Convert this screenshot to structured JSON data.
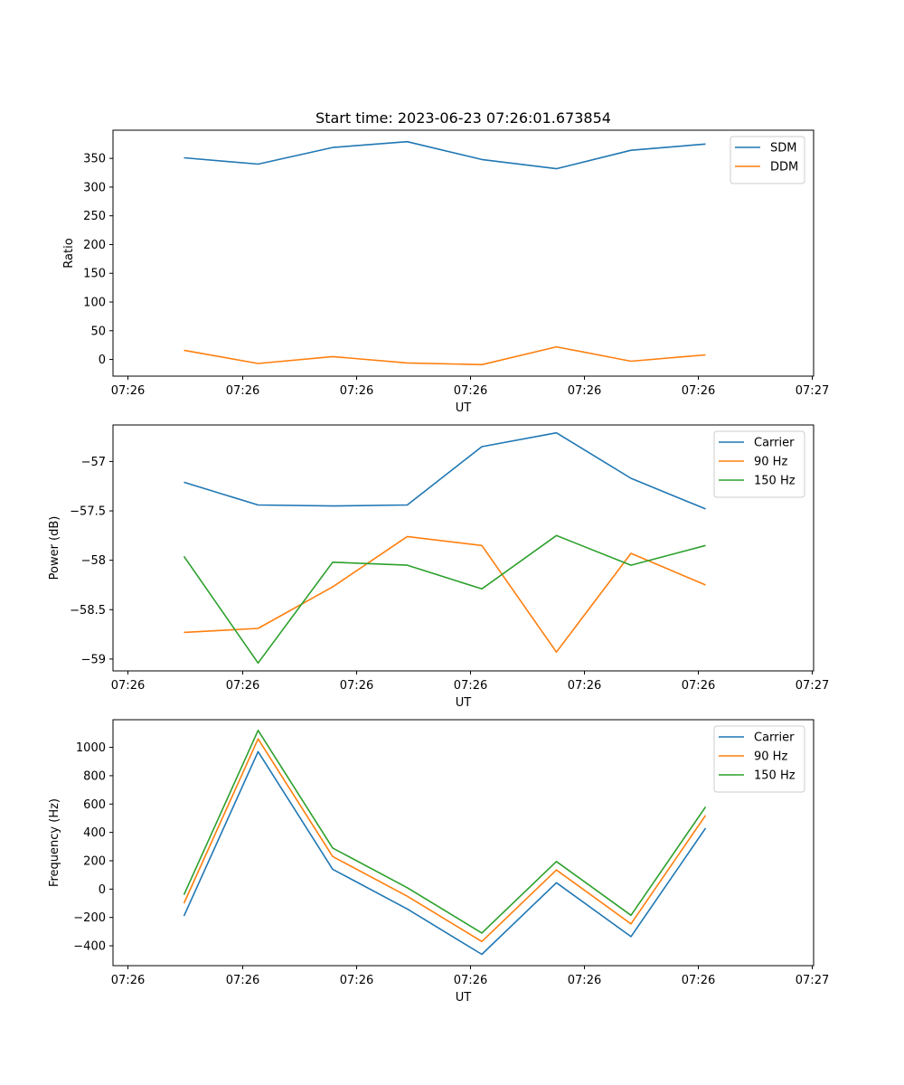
{
  "figure": {
    "title": "Start time: 2023-06-23 07:26:01.673854"
  },
  "chart_data": [
    {
      "type": "line",
      "title": "Start time: 2023-06-23 07:26:01.673854",
      "xlabel": "UT",
      "ylabel": "Ratio",
      "x_tick_labels": [
        "07:26",
        "07:26",
        "07:26",
        "07:26",
        "07:26",
        "07:26",
        "07:27"
      ],
      "y_ticks": [
        0,
        50,
        100,
        150,
        200,
        250,
        300,
        350
      ],
      "ylim": [
        -29,
        399
      ],
      "legend_position": "top-right",
      "grid": false,
      "series": [
        {
          "name": "SDM",
          "color": "#1f77b4",
          "values": [
            351,
            340,
            369,
            379,
            348,
            332,
            364,
            375
          ]
        },
        {
          "name": "DDM",
          "color": "#ff7f0e",
          "values": [
            16,
            -7,
            5,
            -6,
            -9,
            22,
            -3,
            8
          ]
        }
      ]
    },
    {
      "type": "line",
      "title": "",
      "xlabel": "UT",
      "ylabel": "Power (dB)",
      "x_tick_labels": [
        "07:26",
        "07:26",
        "07:26",
        "07:26",
        "07:26",
        "07:26",
        "07:27"
      ],
      "y_ticks": [
        -59.0,
        -58.5,
        -58.0,
        -57.5,
        -57.0
      ],
      "ylim": [
        -59.12,
        -56.63
      ],
      "legend_position": "top-right",
      "grid": false,
      "series": [
        {
          "name": "Carrier",
          "color": "#1f77b4",
          "values": [
            -57.21,
            -57.44,
            -57.45,
            -57.44,
            -56.85,
            -56.71,
            -57.17,
            -57.48
          ]
        },
        {
          "name": "90 Hz",
          "color": "#ff7f0e",
          "values": [
            -58.73,
            -58.69,
            -58.27,
            -57.76,
            -57.85,
            -58.93,
            -57.93,
            -58.25
          ]
        },
        {
          "name": "150 Hz",
          "color": "#2ca02c",
          "values": [
            -57.96,
            -59.04,
            -58.02,
            -58.05,
            -58.29,
            -57.75,
            -58.05,
            -57.85
          ]
        }
      ]
    },
    {
      "type": "line",
      "title": "",
      "xlabel": "UT",
      "ylabel": "Frequency (Hz)",
      "x_tick_labels": [
        "07:26",
        "07:26",
        "07:26",
        "07:26",
        "07:26",
        "07:26",
        "07:27"
      ],
      "y_ticks": [
        -400,
        -200,
        0,
        200,
        400,
        600,
        800,
        1000
      ],
      "ylim": [
        -540,
        1195
      ],
      "legend_position": "top-right",
      "grid": false,
      "series": [
        {
          "name": "Carrier",
          "color": "#1f77b4",
          "values": [
            -190,
            970,
            140,
            -140,
            -460,
            45,
            -335,
            430
          ]
        },
        {
          "name": "90 Hz",
          "color": "#ff7f0e",
          "values": [
            -100,
            1060,
            230,
            -50,
            -370,
            135,
            -245,
            520
          ]
        },
        {
          "name": "150 Hz",
          "color": "#2ca02c",
          "values": [
            -40,
            1120,
            290,
            10,
            -310,
            195,
            -185,
            580
          ]
        }
      ]
    }
  ]
}
